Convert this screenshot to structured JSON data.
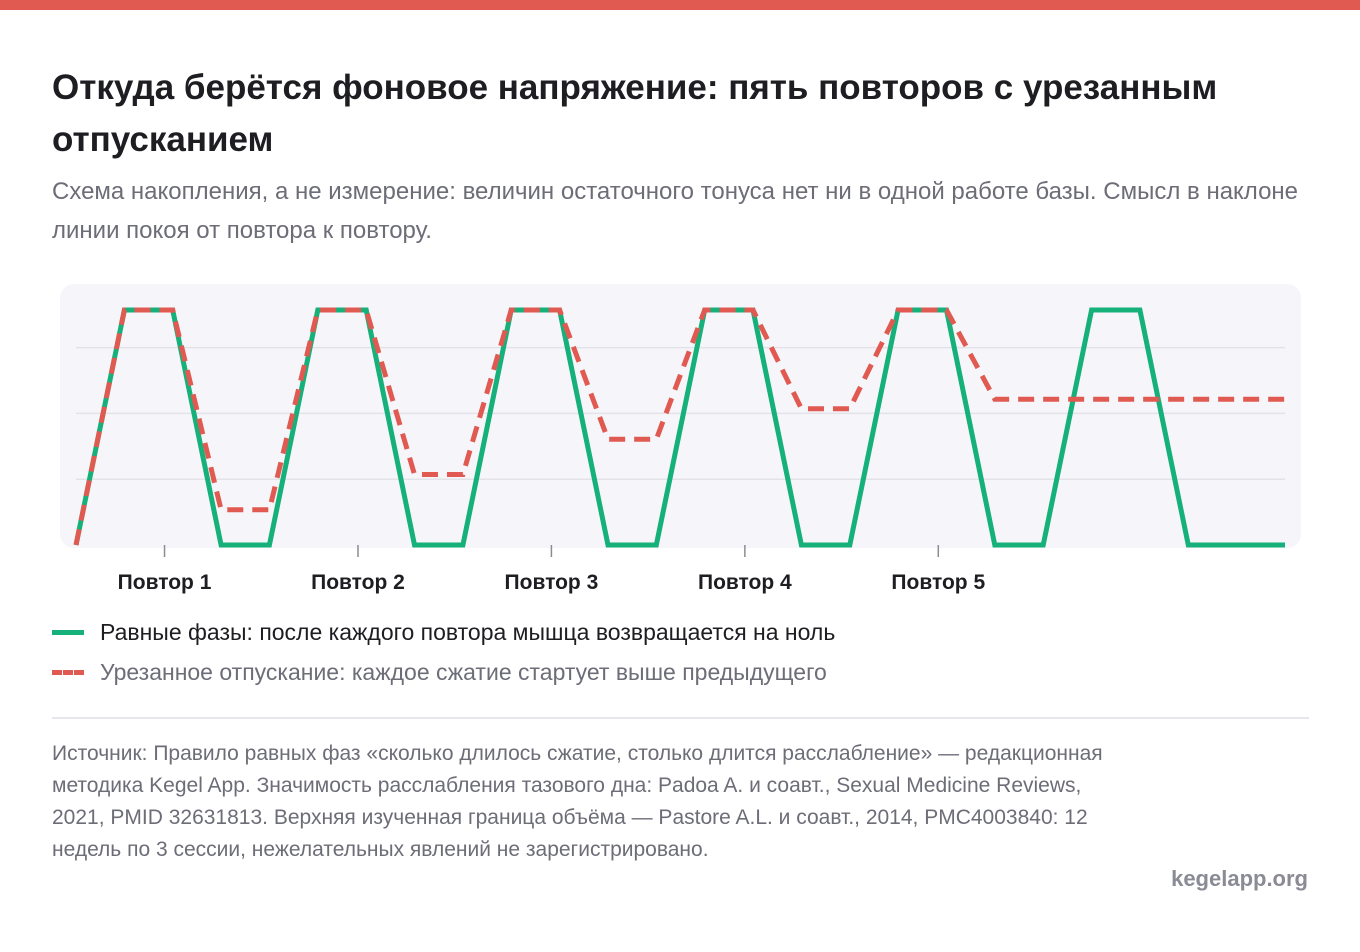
{
  "header": {
    "title": "Откуда берётся фоновое напряжение: пять повторов с урезанным отпусканием",
    "subtitle": "Схема накопления, а не измерение: величин остаточного тонуса нет ни в одной работе базы. Смысл в наклоне линии покоя от повтора к повтору."
  },
  "colors": {
    "accent": "#e05a52",
    "equal_phases": "#16b07a",
    "truncated_release": "#e05a52",
    "panel": "#f6f6fa",
    "grid": "#e2e2e8"
  },
  "chart_data": {
    "type": "line",
    "categories": [
      "Повтор 1",
      "Повтор 2",
      "Повтор 3",
      "Повтор 4",
      "Повтор 5"
    ],
    "x": [
      0,
      1,
      2,
      3,
      4,
      5,
      6,
      7,
      8,
      9,
      10,
      11,
      12,
      13,
      14,
      15,
      16,
      17,
      18,
      19,
      20,
      21,
      22,
      23,
      24,
      25
    ],
    "ylim": [
      0,
      1
    ],
    "grid": true,
    "series": [
      {
        "name": "Равные фазы: после каждого повтора мышца возвращается на ноль",
        "style": "solid",
        "values": [
          0,
          1,
          1,
          0,
          0,
          1,
          1,
          0,
          0,
          1,
          1,
          0,
          0,
          1,
          1,
          0,
          0,
          1,
          1,
          0,
          0,
          1,
          1,
          0,
          0,
          0
        ]
      },
      {
        "name": "Урезанное отпускание: каждое сжатие стартует выше предыдущего",
        "style": "dashed",
        "values": [
          0,
          1,
          1,
          0.15,
          0.15,
          1,
          1,
          0.3,
          0.3,
          1,
          1,
          0.45,
          0.45,
          1,
          1,
          0.58,
          0.58,
          1,
          1,
          0.62,
          0.62,
          0.62,
          0.62,
          0.62,
          0.62,
          0.62
        ]
      }
    ]
  },
  "legend": {
    "items": [
      "Равные фазы: после каждого повтора мышца возвращается на ноль",
      "Урезанное отпускание: каждое сжатие стартует выше предыдущего"
    ]
  },
  "footer": {
    "source": "Источник: Правило равных фаз «сколько длилось сжатие, столько длится расслабление» — редакционная методика Kegel App. Значимость расслабления тазового дна: Padoa A. и соавт., Sexual Medicine Reviews, 2021, PMID 32631813. Верхняя изученная граница объёма — Pastore A.L. и соавт., 2014, PMC4003840: 12 недель по 3 сессии, нежелательных явлений не зарегистрировано.",
    "site": "kegelapp.org"
  }
}
